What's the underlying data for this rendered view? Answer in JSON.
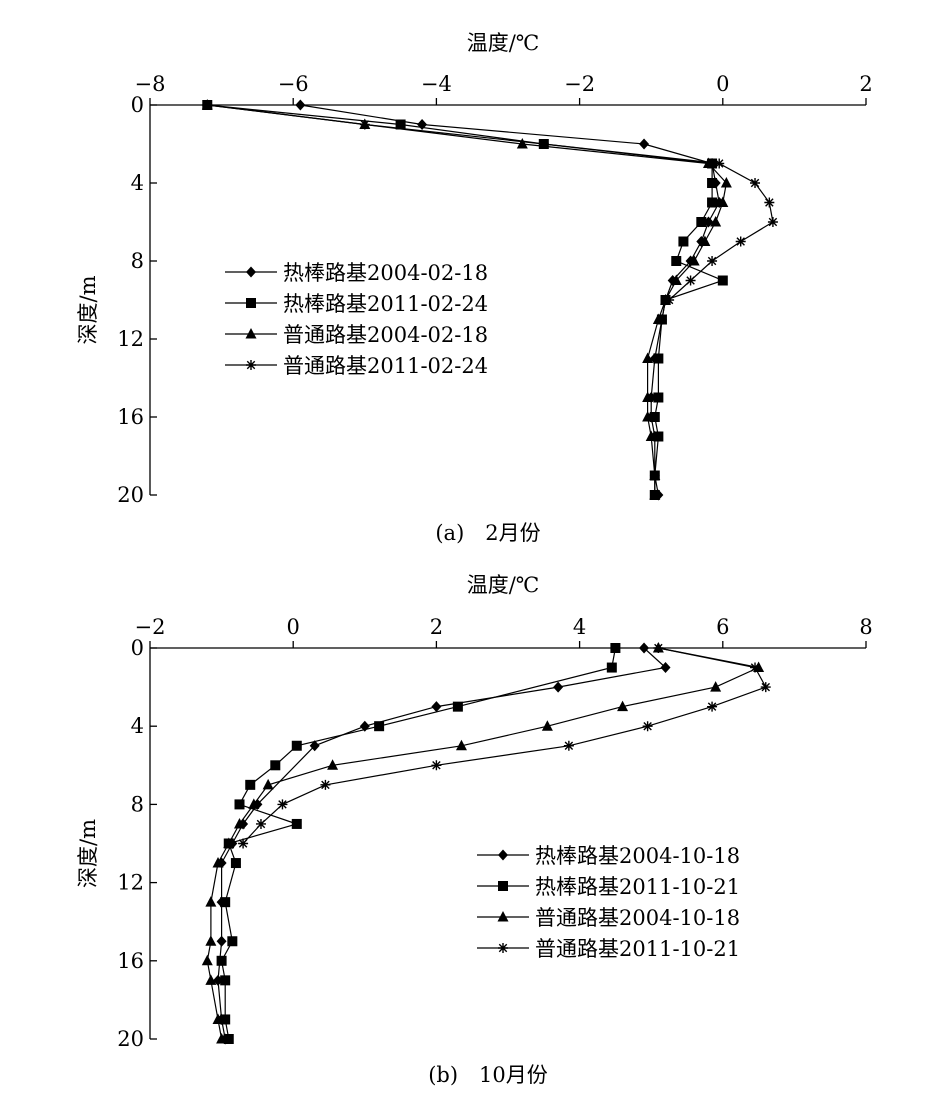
{
  "chart_data": [
    {
      "type": "line",
      "caption": "(a)　2月份",
      "xlabel": "温度/℃",
      "ylabel": "深度/m",
      "xlim": [
        -8,
        2
      ],
      "ylim": [
        0,
        20
      ],
      "x_ticks": [
        -8,
        -6,
        -4,
        -2,
        0,
        2
      ],
      "x_tick_labels": [
        "−8",
        "−6",
        "−4",
        "−2",
        "0",
        "2"
      ],
      "y_ticks": [
        0,
        4,
        8,
        12,
        16,
        20
      ],
      "y_tick_labels": [
        "0",
        "4",
        "8",
        "12",
        "16",
        "20"
      ],
      "y_inverted": true,
      "x_axis_position": "top",
      "grid": false,
      "legend_position": "middle-left",
      "series": [
        {
          "name": "热棒路基2004-02-18",
          "marker": "diamond",
          "points": [
            [
              -5.9,
              0
            ],
            [
              -4.2,
              1
            ],
            [
              -1.1,
              2
            ],
            [
              -0.15,
              3
            ],
            [
              -0.1,
              4
            ],
            [
              -0.05,
              5
            ],
            [
              -0.2,
              6
            ],
            [
              -0.3,
              7
            ],
            [
              -0.45,
              8
            ],
            [
              -0.7,
              9
            ],
            [
              -0.8,
              10
            ],
            [
              -0.85,
              11
            ],
            [
              -0.95,
              13
            ],
            [
              -1.0,
              15
            ],
            [
              -1.0,
              16
            ],
            [
              -0.95,
              17
            ],
            [
              -0.95,
              19
            ],
            [
              -0.9,
              20
            ]
          ]
        },
        {
          "name": "热棒路基2011-02-24",
          "marker": "square",
          "points": [
            [
              -7.2,
              0
            ],
            [
              -4.5,
              1
            ],
            [
              -2.5,
              2
            ],
            [
              -0.15,
              3
            ],
            [
              -0.15,
              4
            ],
            [
              -0.15,
              5
            ],
            [
              -0.3,
              6
            ],
            [
              -0.55,
              7
            ],
            [
              -0.65,
              8
            ],
            [
              0.0,
              9
            ],
            [
              -0.8,
              10
            ],
            [
              -0.85,
              11
            ],
            [
              -0.9,
              13
            ],
            [
              -0.9,
              15
            ],
            [
              -0.95,
              16
            ],
            [
              -0.9,
              17
            ],
            [
              -0.95,
              19
            ],
            [
              -0.95,
              20
            ]
          ]
        },
        {
          "name": "普通路基2004-02-18",
          "marker": "triangle",
          "points": [
            [
              -7.2,
              0
            ],
            [
              -5.0,
              1
            ],
            [
              -2.8,
              2
            ],
            [
              -0.2,
              3
            ],
            [
              0.05,
              4
            ],
            [
              0.0,
              5
            ],
            [
              -0.1,
              6
            ],
            [
              -0.25,
              7
            ],
            [
              -0.4,
              8
            ],
            [
              -0.65,
              9
            ],
            [
              -0.8,
              10
            ],
            [
              -0.9,
              11
            ],
            [
              -1.05,
              13
            ],
            [
              -1.05,
              15
            ],
            [
              -1.05,
              16
            ],
            [
              -1.0,
              17
            ],
            [
              -0.95,
              19
            ],
            [
              -0.95,
              20
            ]
          ]
        },
        {
          "name": "普通路基2011-02-24",
          "marker": "star",
          "points": [
            [
              -7.2,
              0
            ],
            [
              -5.0,
              1
            ],
            [
              -2.5,
              2
            ],
            [
              -0.05,
              3
            ],
            [
              0.45,
              4
            ],
            [
              0.65,
              5
            ],
            [
              0.7,
              6
            ],
            [
              0.25,
              7
            ],
            [
              -0.15,
              8
            ],
            [
              -0.45,
              9
            ],
            [
              -0.75,
              10
            ]
          ]
        }
      ]
    },
    {
      "type": "line",
      "caption": "(b)　10月份",
      "xlabel": "温度/℃",
      "ylabel": "深度/m",
      "xlim": [
        -2,
        8
      ],
      "ylim": [
        0,
        20
      ],
      "x_ticks": [
        -2,
        0,
        2,
        4,
        6,
        8
      ],
      "x_tick_labels": [
        "−2",
        "0",
        "2",
        "4",
        "6",
        "8"
      ],
      "y_ticks": [
        0,
        4,
        8,
        12,
        16,
        20
      ],
      "y_tick_labels": [
        "0",
        "4",
        "8",
        "12",
        "16",
        "20"
      ],
      "y_inverted": true,
      "x_axis_position": "top",
      "grid": false,
      "legend_position": "bottom-right",
      "series": [
        {
          "name": "热棒路基2004-10-18",
          "marker": "diamond",
          "points": [
            [
              4.9,
              0
            ],
            [
              5.2,
              1
            ],
            [
              3.7,
              2
            ],
            [
              2.0,
              3
            ],
            [
              1.0,
              4
            ],
            [
              0.3,
              5
            ],
            [
              -0.5,
              8
            ],
            [
              -0.7,
              9
            ],
            [
              -0.85,
              10
            ],
            [
              -1.0,
              11
            ],
            [
              -1.0,
              13
            ],
            [
              -1.0,
              15
            ],
            [
              -1.05,
              17
            ],
            [
              -1.0,
              19
            ],
            [
              -0.95,
              20
            ]
          ]
        },
        {
          "name": "热棒路基2011-10-21",
          "marker": "square",
          "points": [
            [
              4.5,
              0
            ],
            [
              4.45,
              1
            ],
            [
              2.3,
              3
            ],
            [
              1.2,
              4
            ],
            [
              0.05,
              5
            ],
            [
              -0.25,
              6
            ],
            [
              -0.6,
              7
            ],
            [
              -0.75,
              8
            ],
            [
              0.05,
              9
            ],
            [
              -0.9,
              10
            ],
            [
              -0.8,
              11
            ],
            [
              -0.95,
              13
            ],
            [
              -0.85,
              15
            ],
            [
              -1.0,
              16
            ],
            [
              -0.95,
              17
            ],
            [
              -0.95,
              19
            ],
            [
              -0.9,
              20
            ]
          ]
        },
        {
          "name": "普通路基2004-10-18",
          "marker": "triangle",
          "points": [
            [
              5.1,
              0
            ],
            [
              6.5,
              1
            ],
            [
              5.9,
              2
            ],
            [
              4.6,
              3
            ],
            [
              3.55,
              4
            ],
            [
              2.35,
              5
            ],
            [
              0.55,
              6
            ],
            [
              -0.35,
              7
            ],
            [
              -0.55,
              8
            ],
            [
              -0.75,
              9
            ],
            [
              -0.9,
              10
            ],
            [
              -1.05,
              11
            ],
            [
              -1.15,
              13
            ],
            [
              -1.15,
              15
            ],
            [
              -1.2,
              16
            ],
            [
              -1.15,
              17
            ],
            [
              -1.05,
              19
            ],
            [
              -1.0,
              20
            ]
          ]
        },
        {
          "name": "普通路基2011-10-21",
          "marker": "star",
          "points": [
            [
              5.1,
              0
            ],
            [
              6.45,
              1
            ],
            [
              6.6,
              2
            ],
            [
              5.85,
              3
            ],
            [
              4.95,
              4
            ],
            [
              3.85,
              5
            ],
            [
              2.0,
              6
            ],
            [
              0.45,
              7
            ],
            [
              -0.15,
              8
            ],
            [
              -0.45,
              9
            ],
            [
              -0.7,
              10
            ]
          ]
        }
      ]
    }
  ]
}
